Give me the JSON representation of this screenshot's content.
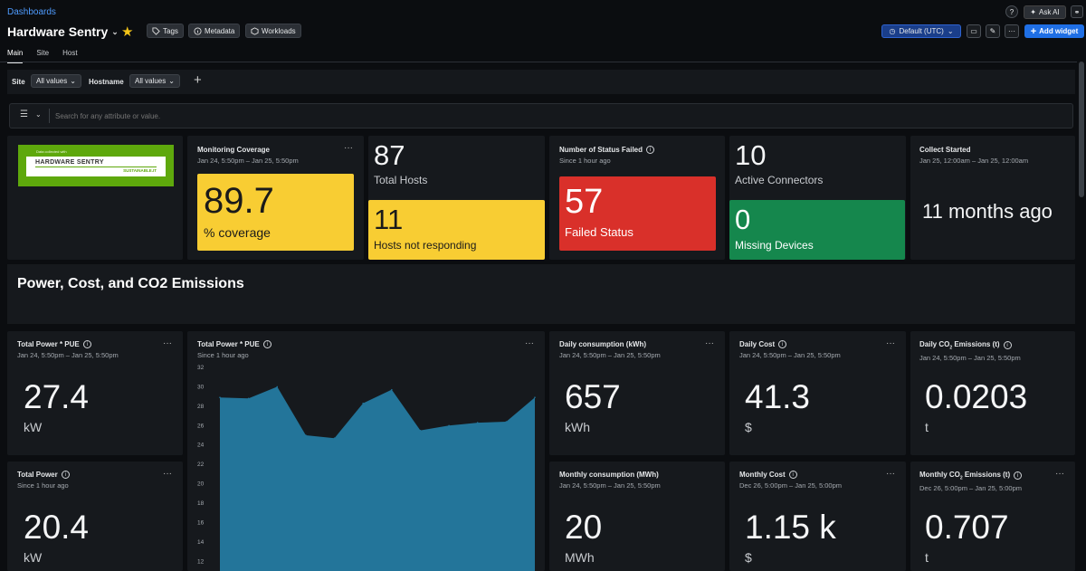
{
  "breadcrumb": "Dashboards",
  "dashboard": {
    "title": "Hardware Sentry"
  },
  "header_chips": [
    "Tags",
    "Metadata",
    "Workloads"
  ],
  "header_right": {
    "ask_ai": "Ask AI",
    "timezone": "Default (UTC)",
    "add_widget": "Add widget"
  },
  "tabs": [
    "Main",
    "Site",
    "Host"
  ],
  "filters": {
    "site_label": "Site",
    "site_value": "All values",
    "hostname_label": "Hostname",
    "hostname_value": "All values"
  },
  "search": {
    "placeholder": "Search for any attribute or value."
  },
  "logo": {
    "top_text": "Data collected with",
    "brand": "HARDWARE SENTRY",
    "tag": "SUSTAINABLE.IT"
  },
  "monitoring": {
    "title": "Monitoring Coverage",
    "range": "Jan 24, 5:50pm – Jan 25, 5:50pm",
    "value": "89.7",
    "unit": "% coverage"
  },
  "hosts": {
    "total_value": "87",
    "total_label": "Total Hosts",
    "notresp_value": "11",
    "notresp_label": "Hosts not responding"
  },
  "status": {
    "title": "Number of Status Failed",
    "range": "Since 1 hour ago",
    "value": "57",
    "label": "Failed Status"
  },
  "connectors": {
    "active_value": "10",
    "active_label": "Active Connectors",
    "missing_value": "0",
    "missing_label": "Missing Devices"
  },
  "collect": {
    "title": "Collect Started",
    "range": "Jan 25, 12:00am – Jan 25, 12:00am",
    "value": "11 months ago"
  },
  "section_title": "Power, Cost, and CO2 Emissions",
  "kpis": {
    "power_pue": {
      "title": "Total Power * PUE",
      "range": "Jan 24, 5:50pm – Jan 25, 5:50pm",
      "value": "27.4",
      "unit": "kW"
    },
    "total_power": {
      "title": "Total Power",
      "range": "Since 1 hour ago",
      "value": "20.4",
      "unit": "kW"
    },
    "daily_kwh": {
      "title": "Daily consumption (kWh)",
      "range": "Jan 24, 5:50pm – Jan 25, 5:50pm",
      "value": "657",
      "unit": "kWh"
    },
    "monthly_mwh": {
      "title": "Monthly consumption (MWh)",
      "range": "Jan 24, 5:50pm – Jan 25, 5:50pm",
      "value": "20",
      "unit": "MWh"
    },
    "daily_cost": {
      "title": "Daily Cost",
      "range": "Jan 24, 5:50pm – Jan 25, 5:50pm",
      "value": "41.3",
      "unit": "$"
    },
    "monthly_cost": {
      "title": "Monthly Cost",
      "range": "Dec 26, 5:00pm – Jan 25, 5:00pm",
      "value": "1.15 k",
      "unit": "$"
    },
    "daily_co2": {
      "title_pre": "Daily CO",
      "title_sub": "2",
      "title_post": " Emissions (t)",
      "range": "Jan 24, 5:50pm – Jan 25, 5:50pm",
      "value": "0.0203",
      "unit": "t"
    },
    "monthly_co2": {
      "title_pre": "Monthly CO",
      "title_sub": "2",
      "title_post": " Emissions (t)",
      "range": "Dec 26, 5:00pm – Jan 25, 5:00pm",
      "value": "0.707",
      "unit": "t"
    }
  },
  "chart_data": {
    "type": "area",
    "title": "Total Power * PUE",
    "subtitle": "Since 1 hour ago",
    "y_ticks": [
      12,
      14,
      16,
      18,
      20,
      22,
      24,
      26,
      28,
      30,
      32
    ],
    "ylim": [
      11,
      32
    ],
    "values": [
      28.9,
      28.8,
      30.0,
      25.0,
      24.7,
      28.3,
      29.7,
      25.5,
      26.0,
      26.3,
      26.4,
      28.9
    ],
    "color": "#23759a"
  },
  "colors": {
    "yellow": "#f8cd33",
    "red": "#d9302a",
    "green": "#15874d",
    "accent": "#1f6fe5"
  }
}
